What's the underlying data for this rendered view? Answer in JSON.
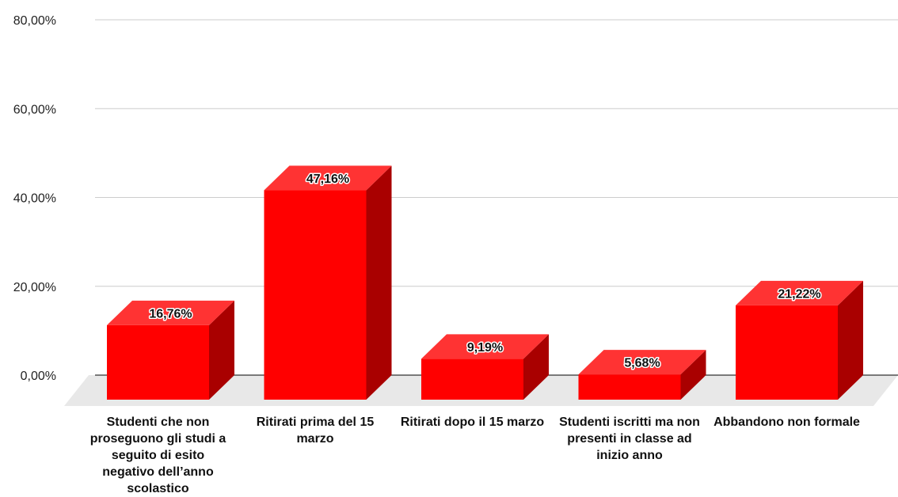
{
  "chart_data": {
    "type": "bar",
    "style": "3d",
    "categories": [
      "Studenti che non proseguono gli studi a seguito di esito negativo dell’anno scolastico",
      "Ritirati prima del 15 marzo",
      "Ritirati dopo il 15 marzo",
      "Studenti iscritti ma non presenti in classe ad inizio anno",
      "Abbandono non formale"
    ],
    "values": [
      16.76,
      47.16,
      9.19,
      5.68,
      21.22
    ],
    "data_labels": [
      "16,76%",
      "47,16%",
      "9,19%",
      "5,68%",
      "21,22%"
    ],
    "ylim": [
      0,
      80
    ],
    "yticks": [
      0,
      20,
      40,
      60,
      80
    ],
    "ytick_labels": [
      "0,00%",
      "20,00%",
      "40,00%",
      "60,00%",
      "80,00%"
    ],
    "grid": true,
    "legend": "none",
    "colors": {
      "bar_front": "#ff0000",
      "bar_top": "#ff3333",
      "bar_side": "#a90000",
      "floor": "#e8e8e8",
      "grid": "#cccccc"
    }
  }
}
